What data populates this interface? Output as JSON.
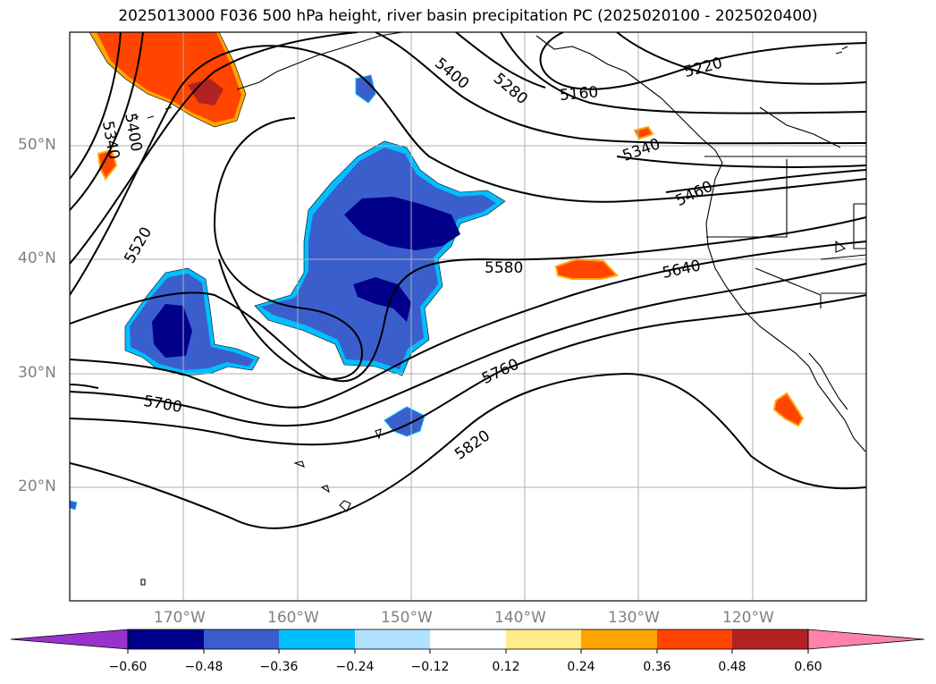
{
  "title": "2025013000 F036 500 hPa height, river basin precipitation PC (2025020100 - 2025020400)",
  "map": {
    "lat_labels": [
      "50°N",
      "40°N",
      "30°N",
      "20°N"
    ],
    "lon_labels": [
      "170°W",
      "160°W",
      "150°W",
      "140°W",
      "130°W",
      "120°W"
    ],
    "contour_labels": [
      "5160",
      "5220",
      "5280",
      "5340",
      "5340",
      "5400",
      "5400",
      "5400",
      "5460",
      "5520",
      "5580",
      "5640",
      "5700",
      "5760",
      "5820"
    ],
    "contour_color": "#000000",
    "grid_color": "#b0b0b0",
    "coastline_color": "#000000"
  },
  "colorbar": {
    "tick_labels": [
      "−0.60",
      "−0.48",
      "−0.36",
      "−0.24",
      "−0.12",
      "0.12",
      "0.24",
      "0.36",
      "0.48",
      "0.60"
    ],
    "colors": [
      "#9932cc",
      "#00008b",
      "#3a5fcd",
      "#00bfff",
      "#b0e2ff",
      "#ffffff",
      "#ffec8b",
      "#ffa500",
      "#ff4500",
      "#b22222",
      "#ff82ab"
    ]
  }
}
